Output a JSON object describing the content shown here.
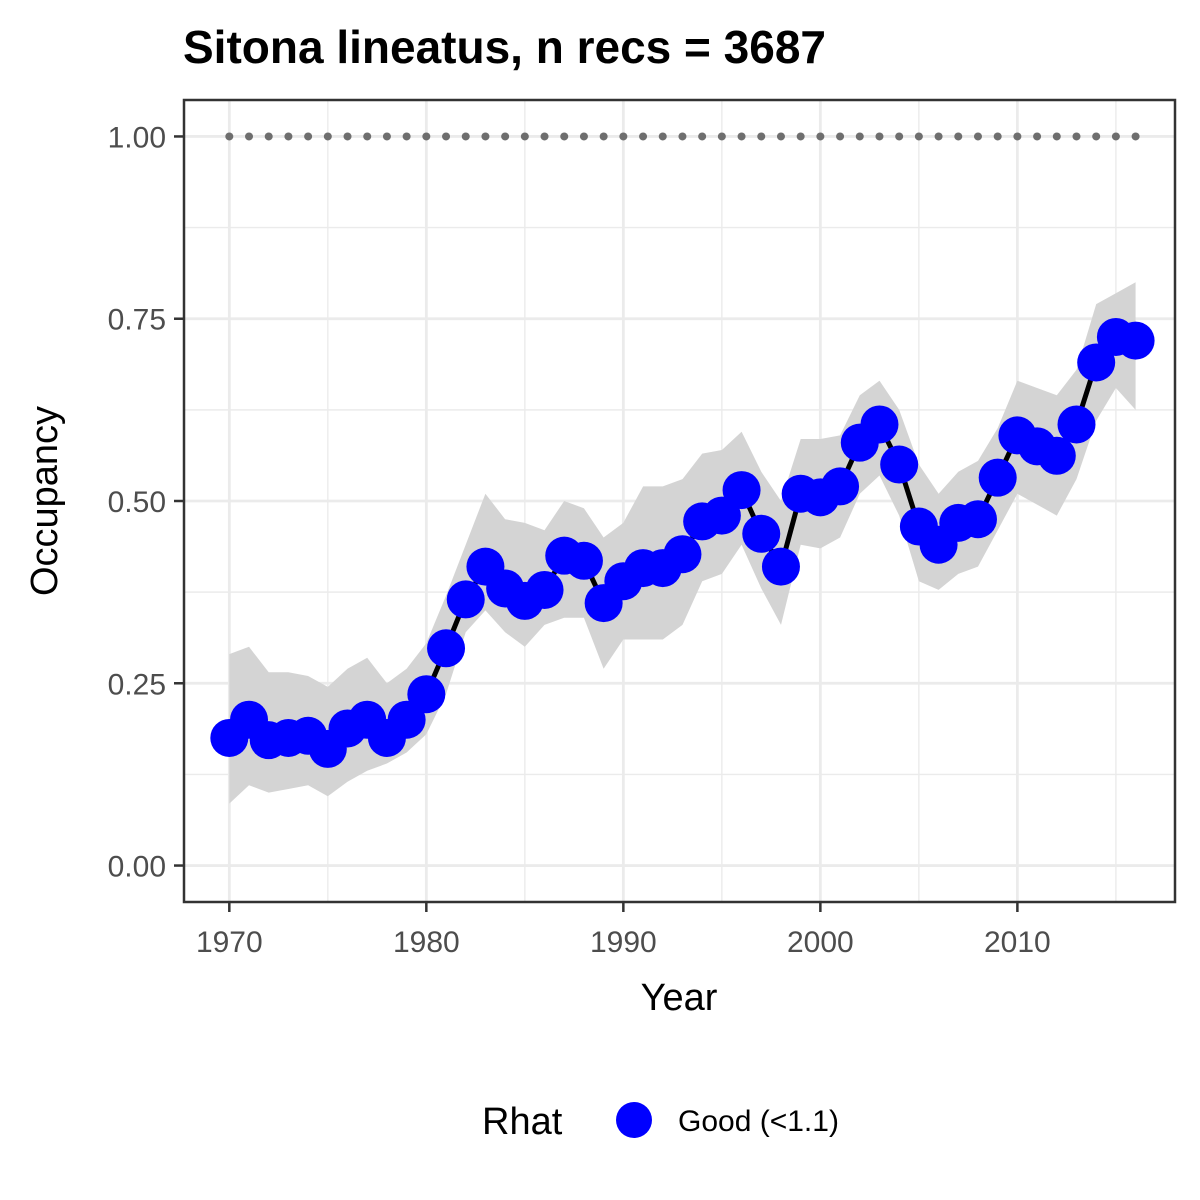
{
  "chart_data": {
    "type": "line",
    "title": "Sitona lineatus, n recs = 3687",
    "xlabel": "Year",
    "ylabel": "Occupancy",
    "xlim": [
      1967.7,
      2018
    ],
    "ylim": [
      -0.05,
      1.05
    ],
    "x_ticks": [
      1970,
      1980,
      1990,
      2000,
      2010
    ],
    "x_tick_labels": [
      "1970",
      "1980",
      "1990",
      "2000",
      "2010"
    ],
    "y_ticks": [
      0,
      0.25,
      0.5,
      0.75,
      1
    ],
    "y_tick_labels": [
      "0.00",
      "0.25",
      "0.50",
      "0.75",
      "1.00"
    ],
    "grid": true,
    "legend": {
      "title": "Rhat",
      "position": "bottom",
      "entries": [
        {
          "label": "Good (<1.1)",
          "color": "#0000ff"
        }
      ]
    },
    "colors": {
      "points": "#0000ff",
      "line": "#000000",
      "ribbon": "#d4d4d4",
      "reference": "#6e6e6e",
      "panel_border": "#333333",
      "grid": "#ebebeb"
    },
    "reference_line": {
      "y": 1.0,
      "style": "dotted",
      "x_from": 1970,
      "x_to": 2016
    },
    "x": [
      1970,
      1971,
      1972,
      1973,
      1974,
      1975,
      1976,
      1977,
      1978,
      1979,
      1980,
      1981,
      1982,
      1983,
      1984,
      1985,
      1986,
      1987,
      1988,
      1989,
      1990,
      1991,
      1992,
      1993,
      1994,
      1995,
      1996,
      1997,
      1998,
      1999,
      2000,
      2001,
      2002,
      2003,
      2004,
      2005,
      2006,
      2007,
      2008,
      2009,
      2010,
      2011,
      2012,
      2013,
      2014,
      2015,
      2016
    ],
    "series": [
      {
        "name": "Good (<1.1)",
        "values": [
          0.175,
          0.2,
          0.172,
          0.175,
          0.178,
          0.16,
          0.188,
          0.2,
          0.175,
          0.2,
          0.235,
          0.298,
          0.365,
          0.41,
          0.38,
          0.363,
          0.378,
          0.425,
          0.418,
          0.36,
          0.39,
          0.408,
          0.408,
          0.427,
          0.472,
          0.48,
          0.515,
          0.455,
          0.41,
          0.51,
          0.505,
          0.52,
          0.58,
          0.605,
          0.55,
          0.465,
          0.44,
          0.47,
          0.475,
          0.532,
          0.59,
          0.575,
          0.562,
          0.605,
          0.69,
          0.725,
          0.72
        ],
        "lower": [
          0.085,
          0.11,
          0.1,
          0.105,
          0.11,
          0.095,
          0.115,
          0.13,
          0.14,
          0.155,
          0.18,
          0.235,
          0.32,
          0.35,
          0.32,
          0.3,
          0.33,
          0.34,
          0.34,
          0.27,
          0.31,
          0.31,
          0.31,
          0.33,
          0.39,
          0.4,
          0.44,
          0.38,
          0.33,
          0.44,
          0.435,
          0.45,
          0.51,
          0.535,
          0.48,
          0.39,
          0.378,
          0.4,
          0.41,
          0.46,
          0.51,
          0.495,
          0.48,
          0.53,
          0.61,
          0.655,
          0.625
        ],
        "upper": [
          0.29,
          0.3,
          0.265,
          0.265,
          0.26,
          0.245,
          0.27,
          0.285,
          0.25,
          0.27,
          0.305,
          0.37,
          0.44,
          0.51,
          0.475,
          0.47,
          0.46,
          0.5,
          0.49,
          0.45,
          0.47,
          0.52,
          0.52,
          0.53,
          0.565,
          0.57,
          0.595,
          0.54,
          0.5,
          0.585,
          0.585,
          0.59,
          0.645,
          0.665,
          0.625,
          0.55,
          0.51,
          0.54,
          0.555,
          0.6,
          0.665,
          0.655,
          0.645,
          0.68,
          0.77,
          0.785,
          0.8
        ]
      }
    ]
  }
}
